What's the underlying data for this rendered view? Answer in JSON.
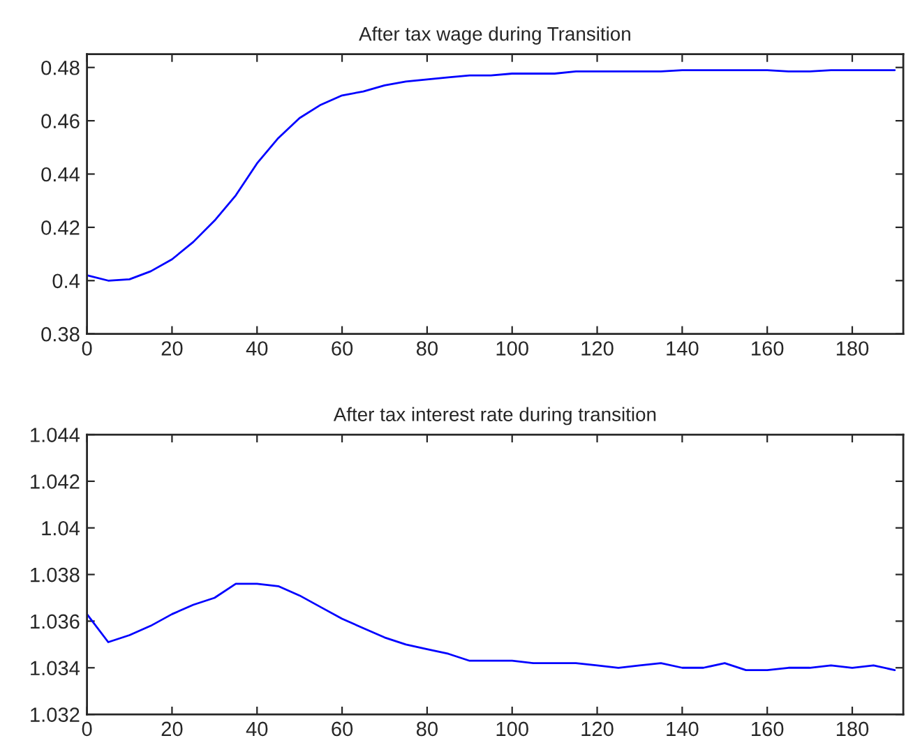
{
  "chart_data": [
    {
      "type": "line",
      "title": "After tax wage during Transition",
      "x": [
        0,
        5,
        10,
        15,
        20,
        25,
        30,
        35,
        40,
        45,
        50,
        55,
        60,
        65,
        70,
        75,
        80,
        85,
        90,
        95,
        100,
        105,
        110,
        115,
        120,
        125,
        130,
        135,
        140,
        145,
        150,
        155,
        160,
        165,
        170,
        175,
        180,
        185,
        190
      ],
      "series": [
        {
          "color": "#0000ff",
          "values": [
            0.402,
            0.4,
            0.4005,
            0.4035,
            0.408,
            0.4145,
            0.4225,
            0.432,
            0.444,
            0.4535,
            0.461,
            0.466,
            0.4695,
            0.471,
            0.4733,
            0.4747,
            0.4755,
            0.4763,
            0.477,
            0.477,
            0.4777,
            0.4777,
            0.4777,
            0.4785,
            0.4785,
            0.4785,
            0.4785,
            0.4785,
            0.479,
            0.479,
            0.479,
            0.479,
            0.479,
            0.4785,
            0.4785,
            0.479,
            0.479,
            0.479,
            0.479
          ]
        }
      ],
      "xlim": [
        0,
        192
      ],
      "xticks": [
        0,
        20,
        40,
        60,
        80,
        100,
        120,
        140,
        160,
        180
      ],
      "ylim": [
        0.38,
        0.485
      ],
      "yticks": [
        0.38,
        0.4,
        0.42,
        0.44,
        0.46,
        0.48
      ],
      "grid": false,
      "legend": false,
      "marker": "none",
      "line_style": "solid"
    },
    {
      "type": "line",
      "title": "After tax interest rate during transition",
      "x": [
        0,
        5,
        10,
        15,
        20,
        25,
        30,
        35,
        40,
        45,
        50,
        55,
        60,
        65,
        70,
        75,
        80,
        85,
        90,
        95,
        100,
        105,
        110,
        115,
        120,
        125,
        130,
        135,
        140,
        145,
        150,
        155,
        160,
        165,
        170,
        175,
        180,
        185,
        190
      ],
      "series": [
        {
          "color": "#0000ff",
          "values": [
            1.0363,
            1.0351,
            1.0354,
            1.0358,
            1.0363,
            1.0367,
            1.037,
            1.0376,
            1.0376,
            1.0375,
            1.0371,
            1.0366,
            1.0361,
            1.0357,
            1.0353,
            1.035,
            1.0348,
            1.0346,
            1.0343,
            1.0343,
            1.0343,
            1.0342,
            1.0342,
            1.0342,
            1.0341,
            1.034,
            1.0341,
            1.0342,
            1.034,
            1.034,
            1.0342,
            1.0339,
            1.0339,
            1.034,
            1.034,
            1.0341,
            1.034,
            1.0341,
            1.0339
          ]
        }
      ],
      "xlim": [
        0,
        192
      ],
      "xticks": [
        0,
        20,
        40,
        60,
        80,
        100,
        120,
        140,
        160,
        180
      ],
      "ylim": [
        1.032,
        1.044
      ],
      "yticks": [
        1.032,
        1.034,
        1.036,
        1.038,
        1.04,
        1.042,
        1.044
      ],
      "grid": false,
      "legend": false,
      "marker": "none",
      "line_style": "solid"
    }
  ]
}
